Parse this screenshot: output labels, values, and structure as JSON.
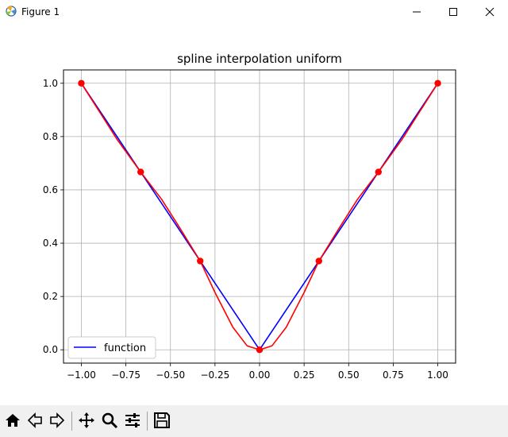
{
  "window": {
    "title": "Figure 1"
  },
  "toolbar": {
    "items": [
      "home-icon",
      "back-icon",
      "forward-icon",
      "pan-icon",
      "zoom-icon",
      "configure-subplots-icon",
      "save-icon"
    ]
  },
  "chart_data": {
    "type": "line",
    "title": "spline interpolation uniform",
    "xlabel": "",
    "ylabel": "",
    "xlim": [
      -1.1,
      1.1
    ],
    "ylim": [
      -0.05,
      1.05
    ],
    "xticks": [
      -1.0,
      -0.75,
      -0.5,
      -0.25,
      0.0,
      0.25,
      0.5,
      0.75,
      1.0
    ],
    "xtick_labels": [
      "−1.00",
      "−0.75",
      "−0.50",
      "−0.25",
      "0.00",
      "0.25",
      "0.50",
      "0.75",
      "1.00"
    ],
    "yticks": [
      0.0,
      0.2,
      0.4,
      0.6,
      0.8,
      1.0
    ],
    "ytick_labels": [
      "0.0",
      "0.2",
      "0.4",
      "0.6",
      "0.8",
      "1.0"
    ],
    "grid": true,
    "legend_position": "lower-left",
    "series": [
      {
        "name": "function",
        "color": "#0000ff",
        "kind": "line",
        "x": [
          -1.0,
          0.0,
          1.0
        ],
        "y": [
          1.0,
          0.0,
          1.0
        ]
      },
      {
        "color": "#ff0000",
        "kind": "line",
        "x": [
          -1.0,
          -0.9,
          -0.8,
          -0.667,
          -0.55,
          -0.45,
          -0.333,
          -0.25,
          -0.15,
          -0.07,
          0.0,
          0.07,
          0.15,
          0.25,
          0.333,
          0.45,
          0.55,
          0.667,
          0.8,
          0.9,
          1.0
        ],
        "y": [
          1.0,
          0.895,
          0.79,
          0.667,
          0.565,
          0.46,
          0.333,
          0.215,
          0.085,
          0.015,
          0.0,
          0.015,
          0.085,
          0.215,
          0.333,
          0.46,
          0.565,
          0.667,
          0.79,
          0.895,
          1.0
        ]
      },
      {
        "color": "#ff0000",
        "kind": "markers",
        "x": [
          -1.0,
          -0.667,
          -0.333,
          0.0,
          0.333,
          0.667,
          1.0
        ],
        "y": [
          1.0,
          0.667,
          0.333,
          0.0,
          0.333,
          0.667,
          1.0
        ]
      }
    ]
  }
}
